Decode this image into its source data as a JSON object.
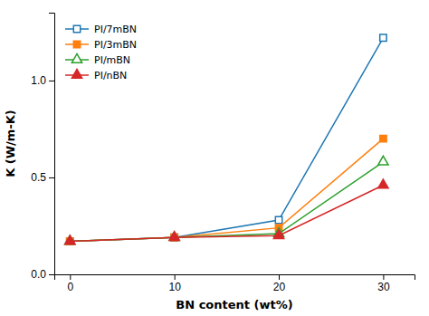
{
  "chart_data": {
    "type": "line",
    "x": [
      0,
      10,
      20,
      30
    ],
    "series": [
      {
        "name": "PI/7mBN",
        "values": [
          0.17,
          0.19,
          0.28,
          1.22
        ],
        "marker": "square-open"
      },
      {
        "name": "PI/3mBN",
        "values": [
          0.17,
          0.19,
          0.24,
          0.7
        ],
        "marker": "square"
      },
      {
        "name": "PI/mBN",
        "values": [
          0.17,
          0.19,
          0.21,
          0.58
        ],
        "marker": "triangle-open"
      },
      {
        "name": "PI/nBN",
        "values": [
          0.17,
          0.19,
          0.2,
          0.46
        ],
        "marker": "triangle"
      }
    ],
    "x_label": "BN content (wt%)",
    "y_label": "K (W/m-K)",
    "xlim": [
      -1.5,
      33
    ],
    "ylim": [
      0.0,
      1.35
    ],
    "xticks": [
      0,
      10,
      20,
      30
    ],
    "yticks": [
      {
        "value": 0.0,
        "label": "0.0"
      },
      0.5,
      {
        "value": 1.0,
        "label": "1.0"
      }
    ],
    "grid": false,
    "legend": "upper left"
  }
}
